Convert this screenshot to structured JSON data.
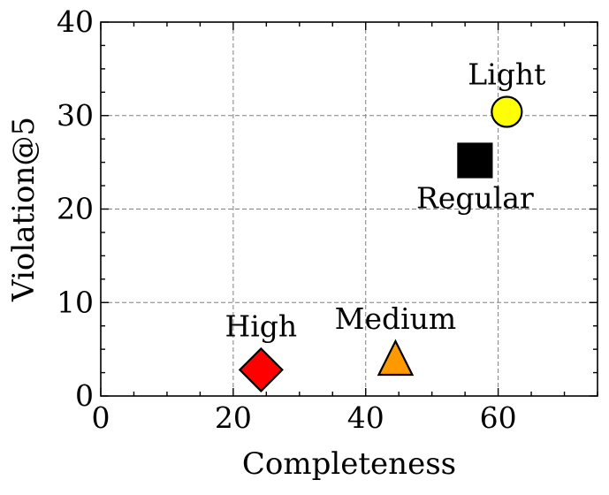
{
  "chart_data": {
    "type": "scatter",
    "title": "",
    "xlabel": "Completeness",
    "ylabel": "Violation@5",
    "xlim": [
      0,
      75
    ],
    "ylim": [
      0,
      40
    ],
    "xticks": [
      0,
      20,
      40,
      60
    ],
    "yticks": [
      0,
      10,
      20,
      30,
      40
    ],
    "grid": true,
    "legend": "none",
    "points": [
      {
        "label": "High",
        "x": 24.2,
        "y": 2.8,
        "marker": "diamond",
        "color": "#ff0000",
        "label_position": "above"
      },
      {
        "label": "Medium",
        "x": 44.5,
        "y": 3.8,
        "marker": "triangle",
        "color": "#ff9900",
        "label_position": "above"
      },
      {
        "label": "Regular",
        "x": 56.5,
        "y": 25.2,
        "marker": "square",
        "color": "#000000",
        "label_position": "below"
      },
      {
        "label": "Light",
        "x": 61.3,
        "y": 30.4,
        "marker": "circle",
        "color": "#ffff00",
        "label_position": "above"
      }
    ]
  }
}
